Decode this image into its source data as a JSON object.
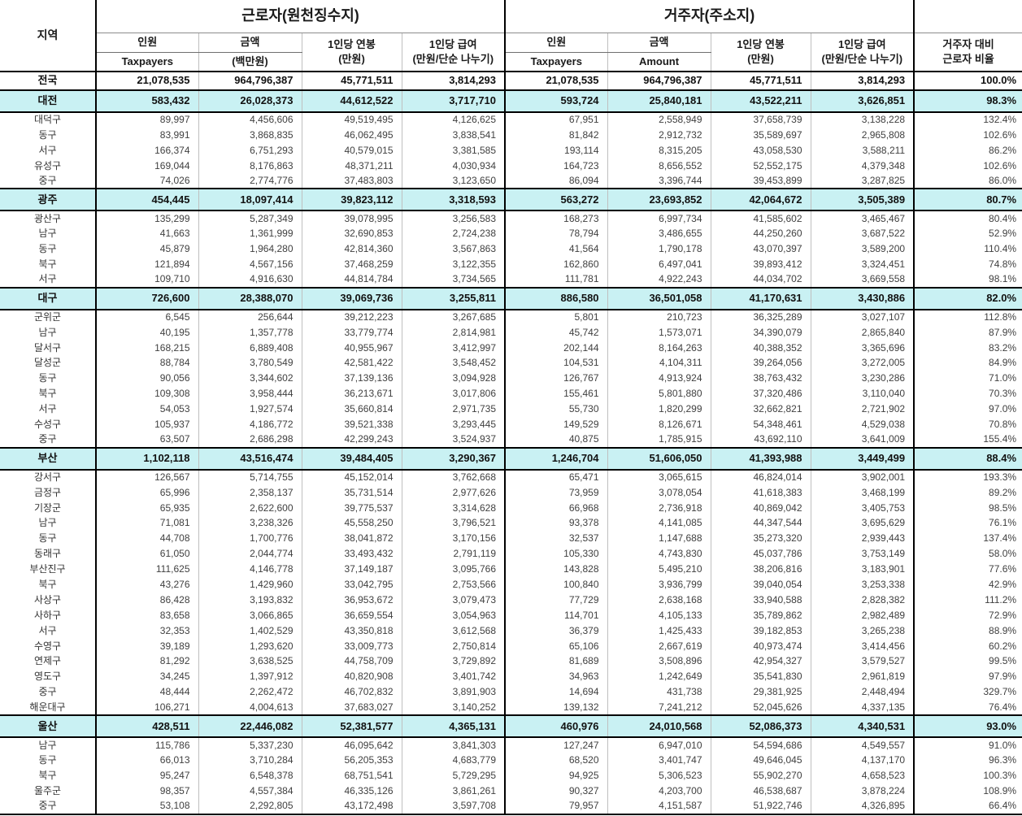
{
  "colors": {
    "summary_row_bg": "#c9f1f3",
    "grid_light": "#bfbfbf",
    "grid_dark": "#000000",
    "text_body": "#404040",
    "text_bold": "#111111"
  },
  "header": {
    "region": "지역",
    "worker_group": "근로자(원천징수지)",
    "resident_group": "거주자(주소지)",
    "ratio_line1": "거주자 대비",
    "ratio_line2": "근로자 비율",
    "worker_cols": {
      "count": "인원",
      "count_sub": "Taxpayers",
      "amount": "금액",
      "amount_sub": "(백만원)",
      "annual": "1인당 연봉",
      "annual_sub": "(만원)",
      "monthly": "1인당 급여",
      "monthly_sub": "(만원/단순 나누기)"
    },
    "resident_cols": {
      "count": "인원",
      "count_sub": "Taxpayers",
      "amount": "금액",
      "amount_sub": "Amount",
      "annual": "1인당 연봉",
      "annual_sub": "(만원)",
      "monthly": "1인당 급여",
      "monthly_sub": "(만원/단순 나누기)"
    }
  },
  "table": {
    "rows": [
      {
        "region": "전국",
        "type": "national",
        "cells": [
          "21,078,535",
          "964,796,387",
          "45,771,511",
          "3,814,293",
          "21,078,535",
          "964,796,387",
          "45,771,511",
          "3,814,293",
          "100.0%"
        ]
      },
      {
        "region": "대전",
        "type": "city",
        "cells": [
          "583,432",
          "26,028,373",
          "44,612,522",
          "3,717,710",
          "593,724",
          "25,840,181",
          "43,522,211",
          "3,626,851",
          "98.3%"
        ]
      },
      {
        "region": "대덕구",
        "type": "district",
        "cells": [
          "89,997",
          "4,456,606",
          "49,519,495",
          "4,126,625",
          "67,951",
          "2,558,949",
          "37,658,739",
          "3,138,228",
          "132.4%"
        ]
      },
      {
        "region": "동구",
        "type": "district",
        "cells": [
          "83,991",
          "3,868,835",
          "46,062,495",
          "3,838,541",
          "81,842",
          "2,912,732",
          "35,589,697",
          "2,965,808",
          "102.6%"
        ]
      },
      {
        "region": "서구",
        "type": "district",
        "cells": [
          "166,374",
          "6,751,293",
          "40,579,015",
          "3,381,585",
          "193,114",
          "8,315,205",
          "43,058,530",
          "3,588,211",
          "86.2%"
        ]
      },
      {
        "region": "유성구",
        "type": "district",
        "cells": [
          "169,044",
          "8,176,863",
          "48,371,211",
          "4,030,934",
          "164,723",
          "8,656,552",
          "52,552,175",
          "4,379,348",
          "102.6%"
        ]
      },
      {
        "region": "중구",
        "type": "district",
        "cells": [
          "74,026",
          "2,774,776",
          "37,483,803",
          "3,123,650",
          "86,094",
          "3,396,744",
          "39,453,899",
          "3,287,825",
          "86.0%"
        ]
      },
      {
        "region": "광주",
        "type": "city",
        "cells": [
          "454,445",
          "18,097,414",
          "39,823,112",
          "3,318,593",
          "563,272",
          "23,693,852",
          "42,064,672",
          "3,505,389",
          "80.7%"
        ]
      },
      {
        "region": "광산구",
        "type": "district",
        "cells": [
          "135,299",
          "5,287,349",
          "39,078,995",
          "3,256,583",
          "168,273",
          "6,997,734",
          "41,585,602",
          "3,465,467",
          "80.4%"
        ]
      },
      {
        "region": "남구",
        "type": "district",
        "cells": [
          "41,663",
          "1,361,999",
          "32,690,853",
          "2,724,238",
          "78,794",
          "3,486,655",
          "44,250,260",
          "3,687,522",
          "52.9%"
        ]
      },
      {
        "region": "동구",
        "type": "district",
        "cells": [
          "45,879",
          "1,964,280",
          "42,814,360",
          "3,567,863",
          "41,564",
          "1,790,178",
          "43,070,397",
          "3,589,200",
          "110.4%"
        ]
      },
      {
        "region": "북구",
        "type": "district",
        "cells": [
          "121,894",
          "4,567,156",
          "37,468,259",
          "3,122,355",
          "162,860",
          "6,497,041",
          "39,893,412",
          "3,324,451",
          "74.8%"
        ]
      },
      {
        "region": "서구",
        "type": "district",
        "cells": [
          "109,710",
          "4,916,630",
          "44,814,784",
          "3,734,565",
          "111,781",
          "4,922,243",
          "44,034,702",
          "3,669,558",
          "98.1%"
        ]
      },
      {
        "region": "대구",
        "type": "city",
        "cells": [
          "726,600",
          "28,388,070",
          "39,069,736",
          "3,255,811",
          "886,580",
          "36,501,058",
          "41,170,631",
          "3,430,886",
          "82.0%"
        ]
      },
      {
        "region": "군위군",
        "type": "district",
        "cells": [
          "6,545",
          "256,644",
          "39,212,223",
          "3,267,685",
          "5,801",
          "210,723",
          "36,325,289",
          "3,027,107",
          "112.8%"
        ]
      },
      {
        "region": "남구",
        "type": "district",
        "cells": [
          "40,195",
          "1,357,778",
          "33,779,774",
          "2,814,981",
          "45,742",
          "1,573,071",
          "34,390,079",
          "2,865,840",
          "87.9%"
        ]
      },
      {
        "region": "달서구",
        "type": "district",
        "cells": [
          "168,215",
          "6,889,408",
          "40,955,967",
          "3,412,997",
          "202,144",
          "8,164,263",
          "40,388,352",
          "3,365,696",
          "83.2%"
        ]
      },
      {
        "region": "달성군",
        "type": "district",
        "cells": [
          "88,784",
          "3,780,549",
          "42,581,422",
          "3,548,452",
          "104,531",
          "4,104,311",
          "39,264,056",
          "3,272,005",
          "84.9%"
        ]
      },
      {
        "region": "동구",
        "type": "district",
        "cells": [
          "90,056",
          "3,344,602",
          "37,139,136",
          "3,094,928",
          "126,767",
          "4,913,924",
          "38,763,432",
          "3,230,286",
          "71.0%"
        ]
      },
      {
        "region": "북구",
        "type": "district",
        "cells": [
          "109,308",
          "3,958,444",
          "36,213,671",
          "3,017,806",
          "155,461",
          "5,801,880",
          "37,320,486",
          "3,110,040",
          "70.3%"
        ]
      },
      {
        "region": "서구",
        "type": "district",
        "cells": [
          "54,053",
          "1,927,574",
          "35,660,814",
          "2,971,735",
          "55,730",
          "1,820,299",
          "32,662,821",
          "2,721,902",
          "97.0%"
        ]
      },
      {
        "region": "수성구",
        "type": "district",
        "cells": [
          "105,937",
          "4,186,772",
          "39,521,338",
          "3,293,445",
          "149,529",
          "8,126,671",
          "54,348,461",
          "4,529,038",
          "70.8%"
        ]
      },
      {
        "region": "중구",
        "type": "district",
        "cells": [
          "63,507",
          "2,686,298",
          "42,299,243",
          "3,524,937",
          "40,875",
          "1,785,915",
          "43,692,110",
          "3,641,009",
          "155.4%"
        ]
      },
      {
        "region": "부산",
        "type": "city",
        "cells": [
          "1,102,118",
          "43,516,474",
          "39,484,405",
          "3,290,367",
          "1,246,704",
          "51,606,050",
          "41,393,988",
          "3,449,499",
          "88.4%"
        ]
      },
      {
        "region": "강서구",
        "type": "district",
        "cells": [
          "126,567",
          "5,714,755",
          "45,152,014",
          "3,762,668",
          "65,471",
          "3,065,615",
          "46,824,014",
          "3,902,001",
          "193.3%"
        ]
      },
      {
        "region": "금정구",
        "type": "district",
        "cells": [
          "65,996",
          "2,358,137",
          "35,731,514",
          "2,977,626",
          "73,959",
          "3,078,054",
          "41,618,383",
          "3,468,199",
          "89.2%"
        ]
      },
      {
        "region": "기장군",
        "type": "district",
        "cells": [
          "65,935",
          "2,622,600",
          "39,775,537",
          "3,314,628",
          "66,968",
          "2,736,918",
          "40,869,042",
          "3,405,753",
          "98.5%"
        ]
      },
      {
        "region": "남구",
        "type": "district",
        "cells": [
          "71,081",
          "3,238,326",
          "45,558,250",
          "3,796,521",
          "93,378",
          "4,141,085",
          "44,347,544",
          "3,695,629",
          "76.1%"
        ]
      },
      {
        "region": "동구",
        "type": "district",
        "cells": [
          "44,708",
          "1,700,776",
          "38,041,872",
          "3,170,156",
          "32,537",
          "1,147,688",
          "35,273,320",
          "2,939,443",
          "137.4%"
        ]
      },
      {
        "region": "동래구",
        "type": "district",
        "cells": [
          "61,050",
          "2,044,774",
          "33,493,432",
          "2,791,119",
          "105,330",
          "4,743,830",
          "45,037,786",
          "3,753,149",
          "58.0%"
        ]
      },
      {
        "region": "부산진구",
        "type": "district",
        "cells": [
          "111,625",
          "4,146,778",
          "37,149,187",
          "3,095,766",
          "143,828",
          "5,495,210",
          "38,206,816",
          "3,183,901",
          "77.6%"
        ]
      },
      {
        "region": "북구",
        "type": "district",
        "cells": [
          "43,276",
          "1,429,960",
          "33,042,795",
          "2,753,566",
          "100,840",
          "3,936,799",
          "39,040,054",
          "3,253,338",
          "42.9%"
        ]
      },
      {
        "region": "사상구",
        "type": "district",
        "cells": [
          "86,428",
          "3,193,832",
          "36,953,672",
          "3,079,473",
          "77,729",
          "2,638,168",
          "33,940,588",
          "2,828,382",
          "111.2%"
        ]
      },
      {
        "region": "사하구",
        "type": "district",
        "cells": [
          "83,658",
          "3,066,865",
          "36,659,554",
          "3,054,963",
          "114,701",
          "4,105,133",
          "35,789,862",
          "2,982,489",
          "72.9%"
        ]
      },
      {
        "region": "서구",
        "type": "district",
        "cells": [
          "32,353",
          "1,402,529",
          "43,350,818",
          "3,612,568",
          "36,379",
          "1,425,433",
          "39,182,853",
          "3,265,238",
          "88.9%"
        ]
      },
      {
        "region": "수영구",
        "type": "district",
        "cells": [
          "39,189",
          "1,293,620",
          "33,009,773",
          "2,750,814",
          "65,106",
          "2,667,619",
          "40,973,474",
          "3,414,456",
          "60.2%"
        ]
      },
      {
        "region": "연제구",
        "type": "district",
        "cells": [
          "81,292",
          "3,638,525",
          "44,758,709",
          "3,729,892",
          "81,689",
          "3,508,896",
          "42,954,327",
          "3,579,527",
          "99.5%"
        ]
      },
      {
        "region": "영도구",
        "type": "district",
        "cells": [
          "34,245",
          "1,397,912",
          "40,820,908",
          "3,401,742",
          "34,963",
          "1,242,649",
          "35,541,830",
          "2,961,819",
          "97.9%"
        ]
      },
      {
        "region": "중구",
        "type": "district",
        "cells": [
          "48,444",
          "2,262,472",
          "46,702,832",
          "3,891,903",
          "14,694",
          "431,738",
          "29,381,925",
          "2,448,494",
          "329.7%"
        ]
      },
      {
        "region": "해운대구",
        "type": "district",
        "cells": [
          "106,271",
          "4,004,613",
          "37,683,027",
          "3,140,252",
          "139,132",
          "7,241,212",
          "52,045,626",
          "4,337,135",
          "76.4%"
        ]
      },
      {
        "region": "울산",
        "type": "city",
        "cells": [
          "428,511",
          "22,446,082",
          "52,381,577",
          "4,365,131",
          "460,976",
          "24,010,568",
          "52,086,373",
          "4,340,531",
          "93.0%"
        ]
      },
      {
        "region": "남구",
        "type": "district",
        "cells": [
          "115,786",
          "5,337,230",
          "46,095,642",
          "3,841,303",
          "127,247",
          "6,947,010",
          "54,594,686",
          "4,549,557",
          "91.0%"
        ]
      },
      {
        "region": "동구",
        "type": "district",
        "cells": [
          "66,013",
          "3,710,284",
          "56,205,353",
          "4,683,779",
          "68,520",
          "3,401,747",
          "49,646,045",
          "4,137,170",
          "96.3%"
        ]
      },
      {
        "region": "북구",
        "type": "district",
        "cells": [
          "95,247",
          "6,548,378",
          "68,751,541",
          "5,729,295",
          "94,925",
          "5,306,523",
          "55,902,270",
          "4,658,523",
          "100.3%"
        ]
      },
      {
        "region": "울주군",
        "type": "district",
        "cells": [
          "98,357",
          "4,557,384",
          "46,335,126",
          "3,861,261",
          "90,327",
          "4,203,700",
          "46,538,687",
          "3,878,224",
          "108.9%"
        ]
      },
      {
        "region": "중구",
        "type": "district",
        "cells": [
          "53,108",
          "2,292,805",
          "43,172,498",
          "3,597,708",
          "79,957",
          "4,151,587",
          "51,922,746",
          "4,326,895",
          "66.4%"
        ]
      }
    ]
  }
}
